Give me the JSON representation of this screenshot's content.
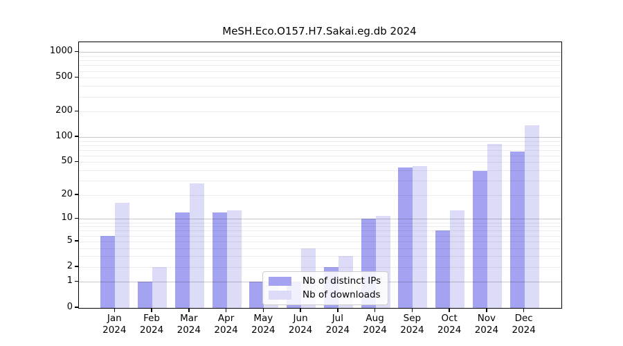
{
  "chart_data": {
    "type": "bar",
    "title": "MeSH.Eco.O157.H7.Sakai.eg.db 2024",
    "xlabel": "",
    "ylabel": "",
    "year": "2024",
    "months": [
      "Jan",
      "Feb",
      "Mar",
      "Apr",
      "May",
      "Jun",
      "Jul",
      "Aug",
      "Sep",
      "Oct",
      "Nov",
      "Dec"
    ],
    "series": [
      {
        "name": "Nb of distinct IPs",
        "color": "#a3a3f1",
        "values": [
          6,
          1,
          12,
          12,
          1,
          1,
          2,
          10,
          43,
          7,
          39,
          67
        ]
      },
      {
        "name": "Nb of downloads",
        "color": "#dcdcf8",
        "values": [
          16,
          2,
          28,
          13,
          1,
          4,
          3,
          11,
          45,
          13,
          82,
          138
        ]
      }
    ],
    "y_scale": "log10(1+y)",
    "y_tick_labels": [
      1000,
      500,
      200,
      100,
      50,
      20,
      10,
      5,
      2,
      1,
      0
    ],
    "y_major_gridlines": [
      1,
      10,
      100,
      1000
    ],
    "y_minor_gridlines": [
      2,
      3,
      4,
      5,
      6,
      7,
      8,
      9,
      20,
      30,
      40,
      50,
      60,
      70,
      80,
      90,
      200,
      300,
      400,
      500,
      600,
      700,
      800,
      900
    ],
    "ylim": [
      0,
      1300
    ],
    "grid": "horizontal",
    "legend_position": "lower center inside plot"
  }
}
